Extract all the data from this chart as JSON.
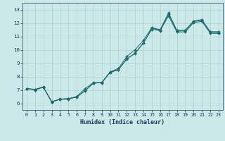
{
  "title": "",
  "xlabel": "Humidex (Indice chaleur)",
  "background_color": "#cce8e8",
  "line_color": "#1a6e6e",
  "xlim": [
    -0.5,
    23.5
  ],
  "ylim": [
    5.5,
    13.5
  ],
  "xticks": [
    0,
    1,
    2,
    3,
    4,
    5,
    6,
    7,
    8,
    9,
    10,
    11,
    12,
    13,
    14,
    15,
    16,
    17,
    18,
    19,
    20,
    21,
    22,
    23
  ],
  "yticks": [
    6,
    7,
    8,
    9,
    10,
    11,
    12,
    13
  ],
  "line1_y": [
    7.1,
    7.0,
    7.2,
    6.1,
    6.3,
    6.3,
    6.5,
    7.1,
    7.55,
    7.55,
    8.35,
    8.6,
    9.5,
    10.0,
    10.7,
    11.65,
    11.5,
    12.75,
    11.45,
    11.45,
    12.15,
    12.25,
    11.35,
    11.35
  ],
  "line2_y": [
    7.1,
    7.0,
    7.2,
    6.1,
    6.3,
    6.35,
    6.45,
    6.95,
    7.5,
    7.55,
    8.3,
    8.5,
    9.3,
    9.75,
    10.5,
    11.6,
    11.45,
    12.65,
    11.4,
    11.4,
    12.1,
    12.2,
    11.3,
    11.25
  ],
  "line3_y": [
    7.1,
    7.05,
    7.22,
    6.12,
    6.32,
    6.35,
    6.5,
    6.92,
    7.52,
    7.52,
    8.32,
    8.52,
    9.32,
    9.72,
    10.52,
    11.52,
    11.42,
    12.52,
    11.32,
    11.32,
    12.02,
    12.12,
    11.22,
    11.22
  ],
  "grid_color": "#aad4d0",
  "markersize": 2.0,
  "linewidth": 0.7,
  "xlabel_fontsize": 6.0,
  "tick_fontsize": 4.8
}
